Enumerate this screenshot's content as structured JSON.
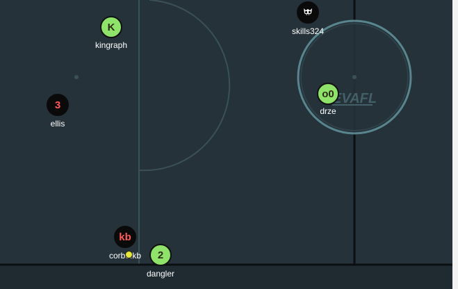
{
  "rink": {
    "background": "#253239",
    "line_color": "#3c5058",
    "board_color": "#0b0f12",
    "goal_ring_color": "#5f8f98",
    "logo_text": "EVAFL"
  },
  "players": [
    {
      "id": "kingraph",
      "badge": "K",
      "name": "kingraph",
      "team": "green"
    },
    {
      "id": "skills324",
      "badge": "skull-icon",
      "name": "skills324",
      "team": "red"
    },
    {
      "id": "ellis",
      "badge": "3",
      "name": "ellis",
      "team": "red"
    },
    {
      "id": "drze",
      "badge": "o0",
      "name": "drze",
      "team": "green"
    },
    {
      "id": "corbo",
      "badge": "kb",
      "name": "corbo.kb",
      "team": "red"
    },
    {
      "id": "dangler",
      "badge": "2",
      "name": "dangler",
      "team": "green"
    }
  ],
  "puck": {
    "color": "#e6e63c"
  },
  "colors": {
    "green_team": "#8fe36a",
    "red_team_text": "#ff5a5a"
  }
}
